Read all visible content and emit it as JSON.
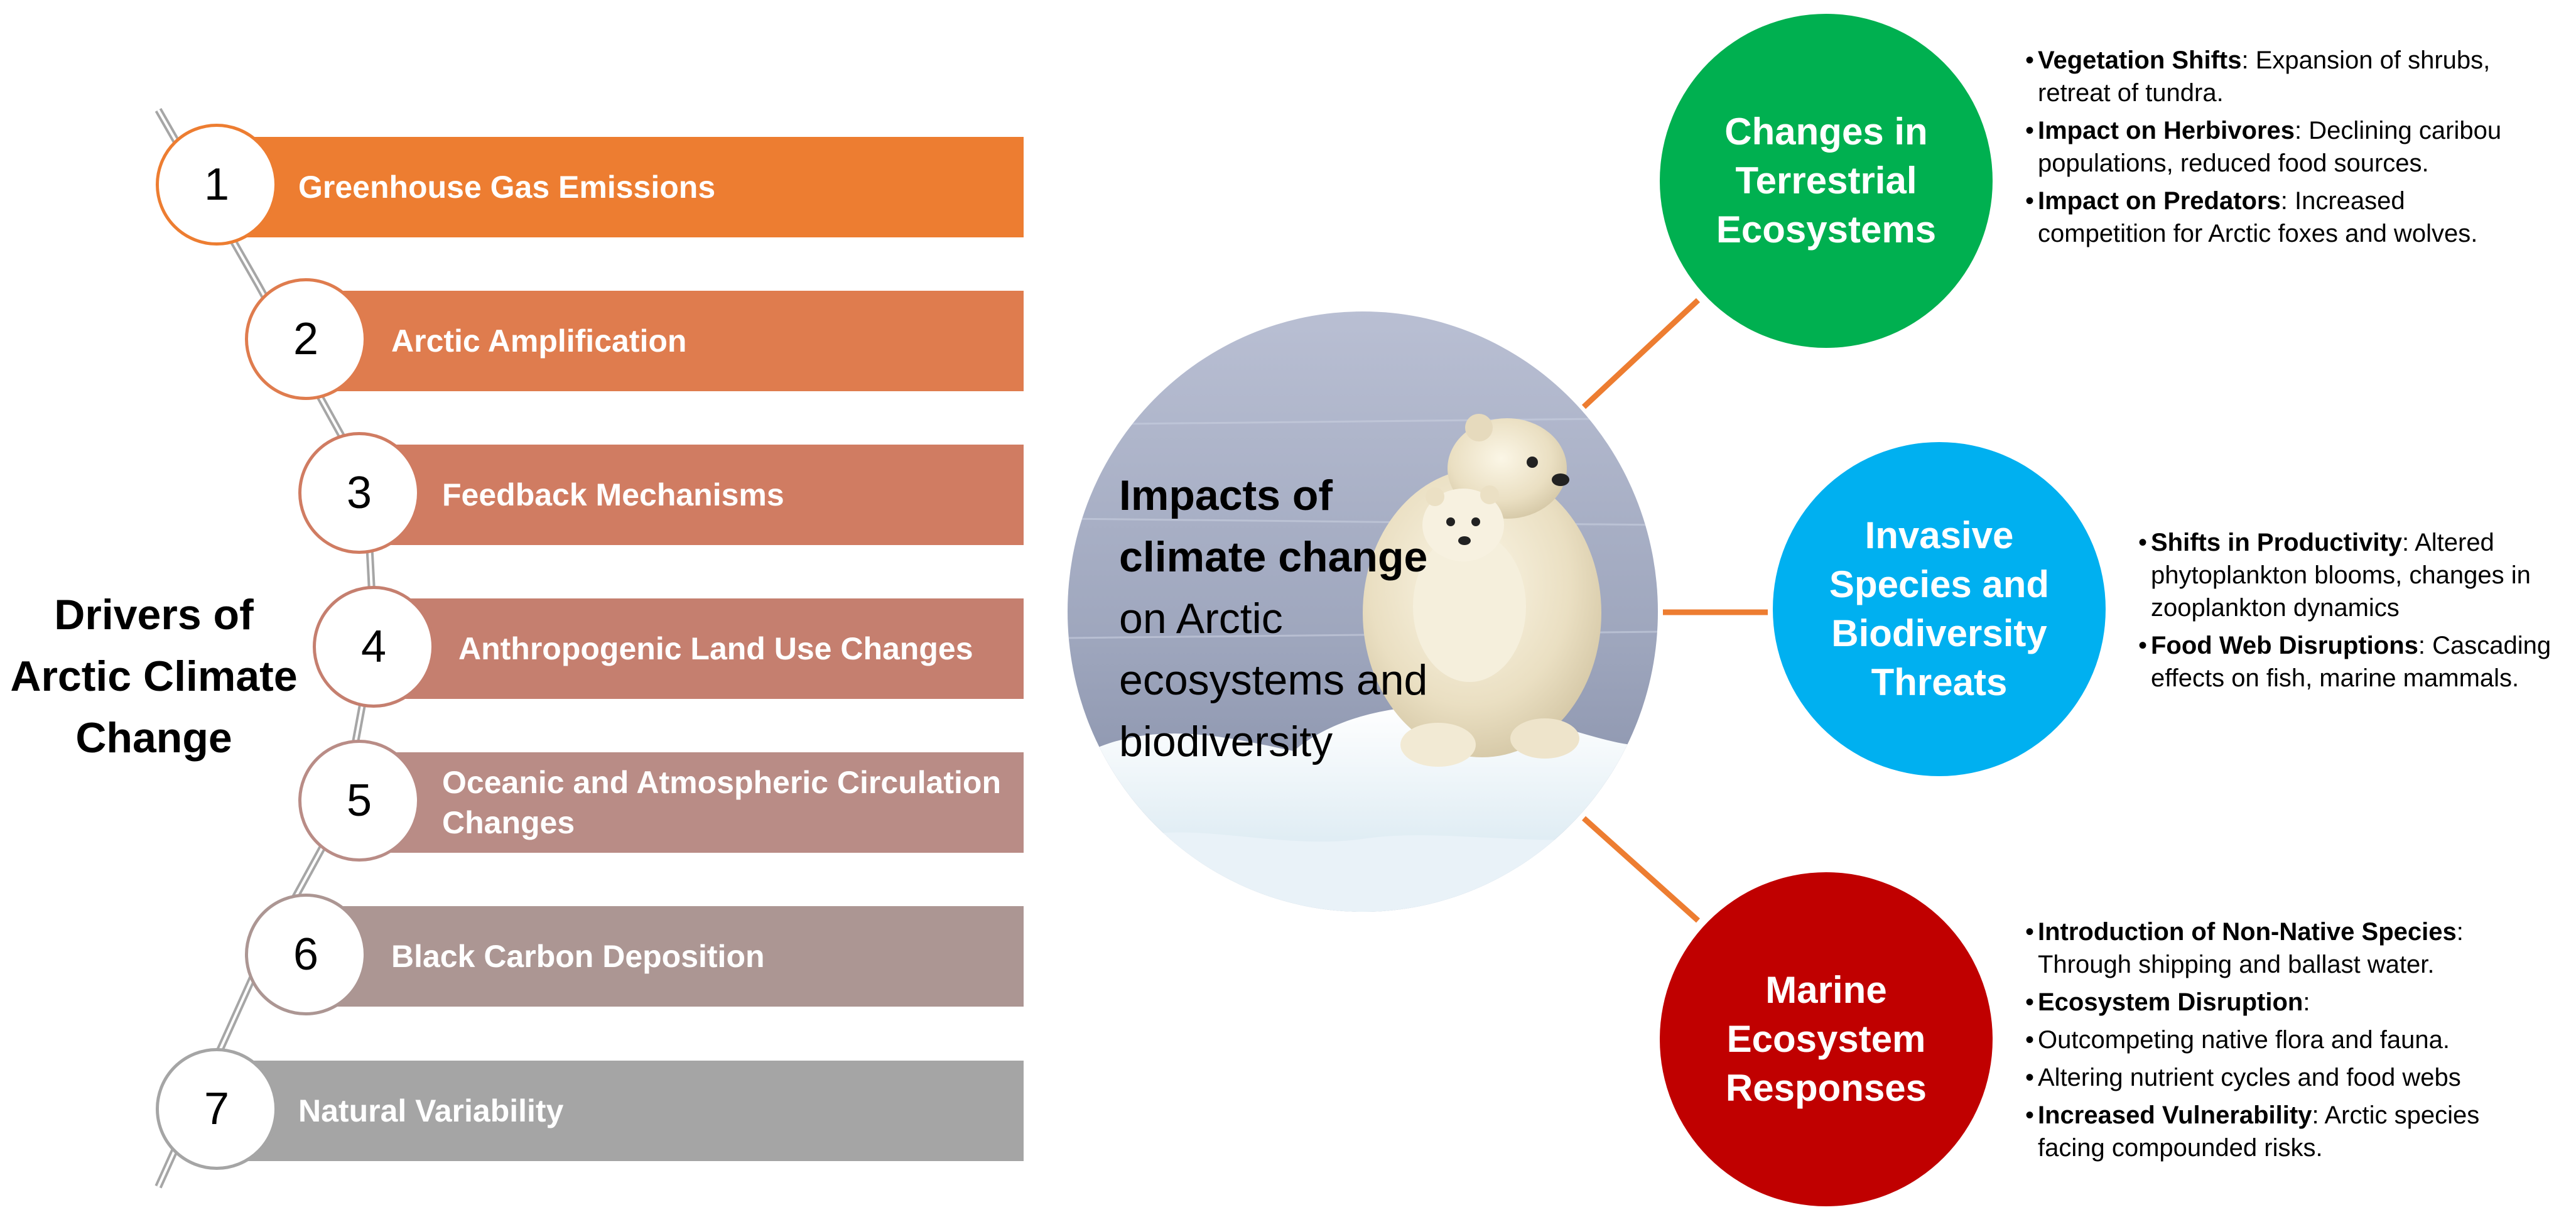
{
  "left_title": {
    "line1": "Drivers of",
    "line2": "Arctic Climate",
    "line3": "Change"
  },
  "drivers": [
    {
      "num": "1",
      "label": "Greenhouse Gas Emissions",
      "color": "#ED7D31"
    },
    {
      "num": "2",
      "label": "Arctic Amplification",
      "color": "#DF7C4E"
    },
    {
      "num": "3",
      "label": "Feedback Mechanisms",
      "color": "#D07C62"
    },
    {
      "num": "4",
      "label": "Anthropogenic Land Use Changes",
      "color": "#C57F6F"
    },
    {
      "num": "5",
      "label": "Oceanic and Atmospheric Circulation Changes",
      "color": "#B98C86"
    },
    {
      "num": "6",
      "label": "Black Carbon Deposition",
      "color": "#AC9693"
    },
    {
      "num": "7",
      "label": "Natural Variability",
      "color": "#A5A5A5"
    }
  ],
  "center": {
    "bold_line1": "Impacts of",
    "bold_line2": "climate change",
    "line3": "on Arctic",
    "line4": "ecosystems and",
    "line5": "biodiversity"
  },
  "impacts": {
    "terrestrial": {
      "line1": "Changes in",
      "line2": "Terrestrial",
      "line3": "Ecosystems",
      "color": "#00B050",
      "bullets": [
        {
          "term": "Vegetation Shifts",
          "text": ": Expansion of shrubs, retreat of tundra."
        },
        {
          "term": "Impact on Herbivores",
          "text": ": Declining caribou populations, reduced food sources."
        },
        {
          "term": "Impact on Predators",
          "text": ": Increased competition for Arctic foxes and wolves."
        }
      ]
    },
    "invasive": {
      "line1": "Invasive",
      "line2": "Species and",
      "line3": "Biodiversity",
      "line4": "Threats",
      "color": "#00B0F0",
      "bullets": [
        {
          "term": "Shifts in Productivity",
          "text": ": Altered phytoplankton blooms, changes in zooplankton dynamics"
        },
        {
          "term": "Food Web Disruptions",
          "text": ": Cascading effects on fish, marine mammals."
        }
      ]
    },
    "marine": {
      "line1": "Marine",
      "line2": "Ecosystem",
      "line3": "Responses",
      "color": "#C00000",
      "bullets": [
        {
          "term": "Introduction of Non-Native Species",
          "text": ": Through shipping and ballast water."
        },
        {
          "term": "Ecosystem Disruption",
          "text": ":"
        },
        {
          "term": "",
          "text": "Outcompeting native flora and fauna."
        },
        {
          "term": "",
          "text": "Altering nutrient cycles and food webs"
        },
        {
          "term": "Increased Vulnerability",
          "text": ": Arctic species facing compounded risks."
        }
      ]
    }
  },
  "colors": {
    "connector": "#ED7D31",
    "spine": "#A6A6A6"
  },
  "icons": {
    "center_image": "polar-bears-on-ice-image"
  }
}
